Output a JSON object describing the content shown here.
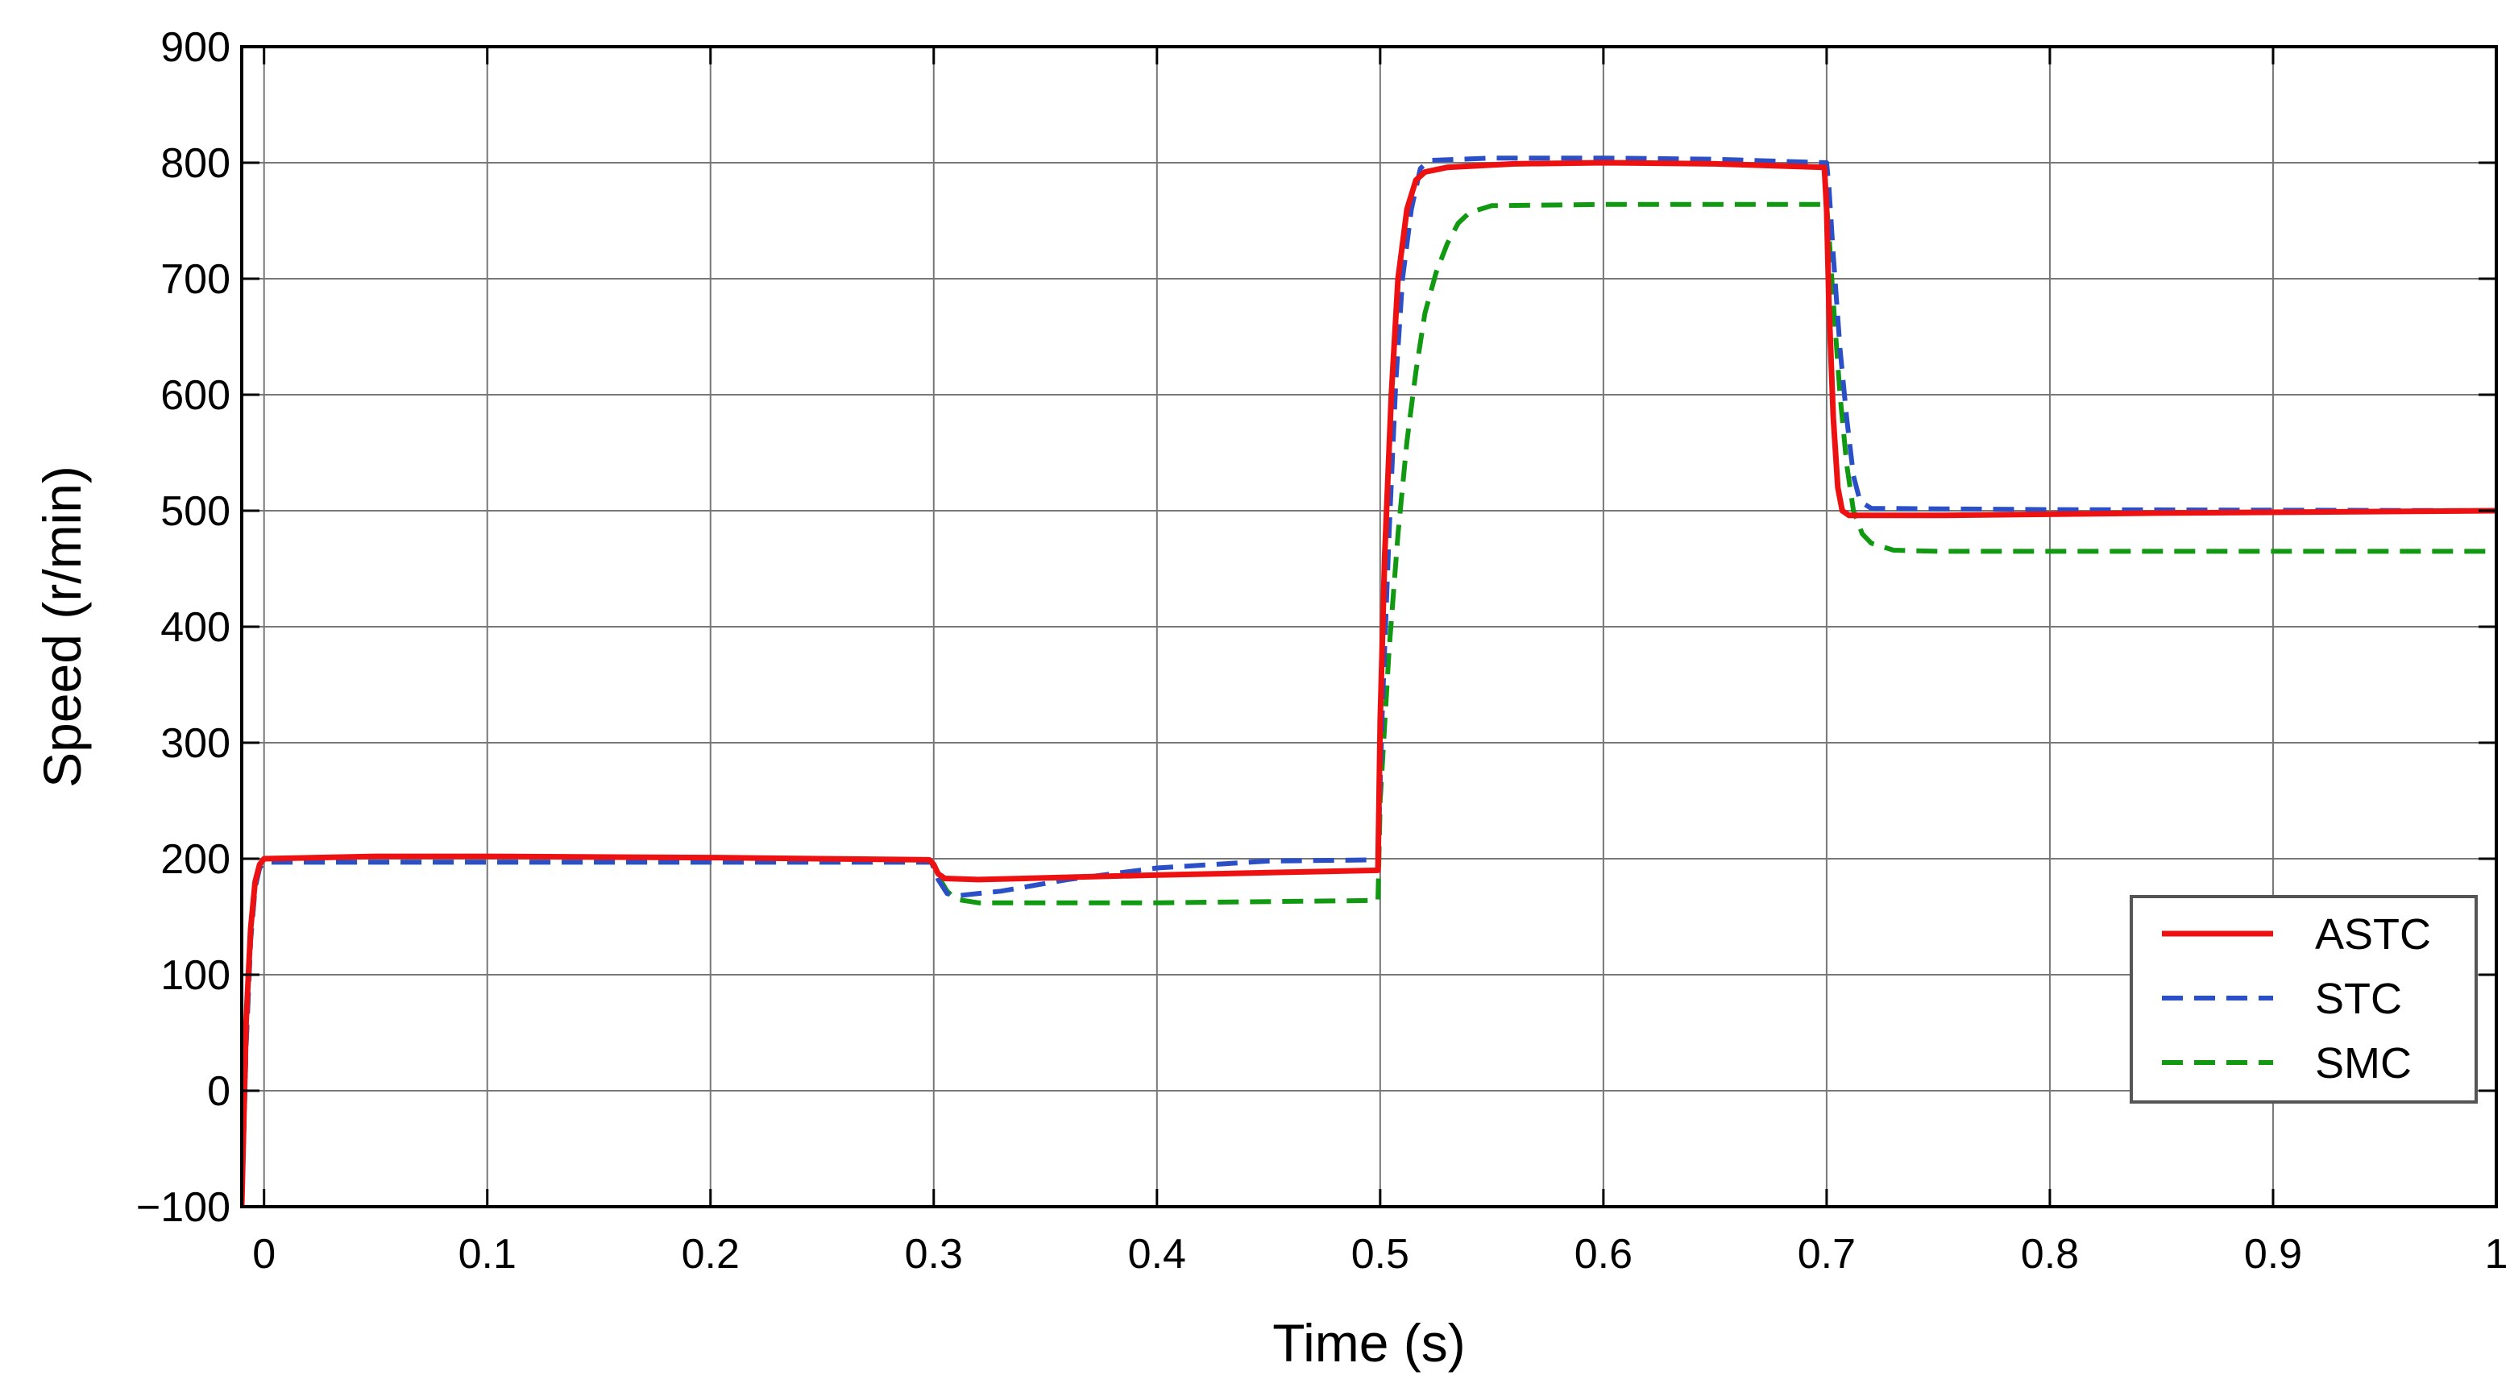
{
  "chart_data": {
    "type": "line",
    "title": "",
    "xlabel": "Time (s)",
    "ylabel": "Speed (r/min)",
    "xlim": [
      -0.01,
      1.0
    ],
    "ylim": [
      -100,
      900
    ],
    "x_ticks": [
      0,
      0.1,
      0.2,
      0.3,
      0.4,
      0.5,
      0.6,
      0.7,
      0.8,
      0.9,
      1
    ],
    "x_tick_labels": [
      "0",
      "0.1",
      "0.2",
      "0.3",
      "0.4",
      "0.5",
      "0.6",
      "0.7",
      "0.8",
      "0.9",
      "1"
    ],
    "y_ticks": [
      -100,
      0,
      100,
      200,
      300,
      400,
      500,
      600,
      700,
      800,
      900
    ],
    "y_tick_labels": [
      "−100",
      "0",
      "100",
      "200",
      "300",
      "400",
      "500",
      "600",
      "700",
      "800",
      "900"
    ],
    "grid": true,
    "legend_position": "bottom-right",
    "series": [
      {
        "name": "ASTC",
        "color": "#ee1111",
        "style": "solid",
        "points": [
          [
            -0.01,
            -100
          ],
          [
            -0.008,
            60
          ],
          [
            -0.006,
            140
          ],
          [
            -0.004,
            180
          ],
          [
            -0.002,
            195
          ],
          [
            0.0,
            200
          ],
          [
            0.05,
            202
          ],
          [
            0.1,
            202
          ],
          [
            0.2,
            201
          ],
          [
            0.298,
            199
          ],
          [
            0.3,
            195
          ],
          [
            0.302,
            187
          ],
          [
            0.305,
            183
          ],
          [
            0.32,
            182
          ],
          [
            0.4,
            186
          ],
          [
            0.45,
            188
          ],
          [
            0.499,
            190
          ],
          [
            0.5,
            320
          ],
          [
            0.502,
            460
          ],
          [
            0.505,
            600
          ],
          [
            0.508,
            700
          ],
          [
            0.512,
            760
          ],
          [
            0.516,
            785
          ],
          [
            0.52,
            792
          ],
          [
            0.53,
            796
          ],
          [
            0.56,
            799
          ],
          [
            0.6,
            800
          ],
          [
            0.65,
            799
          ],
          [
            0.699,
            796
          ],
          [
            0.7,
            760
          ],
          [
            0.701,
            680
          ],
          [
            0.703,
            580
          ],
          [
            0.705,
            520
          ],
          [
            0.707,
            500
          ],
          [
            0.71,
            496
          ],
          [
            0.75,
            496
          ],
          [
            0.85,
            498
          ],
          [
            1.0,
            500
          ]
        ]
      },
      {
        "name": "STC",
        "color": "#2a4fc7",
        "style": "dashed",
        "points": [
          [
            -0.01,
            -100
          ],
          [
            -0.008,
            40
          ],
          [
            -0.006,
            130
          ],
          [
            -0.004,
            175
          ],
          [
            -0.002,
            192
          ],
          [
            0.0,
            197
          ],
          [
            0.1,
            197
          ],
          [
            0.2,
            197
          ],
          [
            0.299,
            197
          ],
          [
            0.302,
            182
          ],
          [
            0.306,
            170
          ],
          [
            0.31,
            168
          ],
          [
            0.33,
            172
          ],
          [
            0.36,
            182
          ],
          [
            0.4,
            192
          ],
          [
            0.45,
            198
          ],
          [
            0.499,
            199
          ],
          [
            0.501,
            330
          ],
          [
            0.504,
            480
          ],
          [
            0.507,
            610
          ],
          [
            0.51,
            700
          ],
          [
            0.514,
            760
          ],
          [
            0.518,
            795
          ],
          [
            0.522,
            802
          ],
          [
            0.55,
            804
          ],
          [
            0.6,
            804
          ],
          [
            0.65,
            803
          ],
          [
            0.7,
            800
          ],
          [
            0.701,
            780
          ],
          [
            0.703,
            720
          ],
          [
            0.706,
            640
          ],
          [
            0.709,
            580
          ],
          [
            0.712,
            530
          ],
          [
            0.715,
            508
          ],
          [
            0.72,
            502
          ],
          [
            0.8,
            501
          ],
          [
            1.0,
            500
          ]
        ]
      },
      {
        "name": "SMC",
        "color": "#119911",
        "style": "dashed",
        "points": [
          [
            -0.01,
            -100
          ],
          [
            -0.008,
            40
          ],
          [
            -0.006,
            130
          ],
          [
            -0.004,
            175
          ],
          [
            -0.002,
            192
          ],
          [
            0.0,
            197
          ],
          [
            0.1,
            197
          ],
          [
            0.2,
            197
          ],
          [
            0.299,
            197
          ],
          [
            0.302,
            185
          ],
          [
            0.306,
            172
          ],
          [
            0.31,
            165
          ],
          [
            0.32,
            162
          ],
          [
            0.4,
            162
          ],
          [
            0.499,
            164
          ],
          [
            0.5,
            250
          ],
          [
            0.504,
            380
          ],
          [
            0.508,
            480
          ],
          [
            0.512,
            560
          ],
          [
            0.516,
            620
          ],
          [
            0.52,
            670
          ],
          [
            0.525,
            705
          ],
          [
            0.53,
            730
          ],
          [
            0.535,
            748
          ],
          [
            0.54,
            757
          ],
          [
            0.55,
            763
          ],
          [
            0.6,
            764
          ],
          [
            0.7,
            764
          ],
          [
            0.701,
            740
          ],
          [
            0.703,
            680
          ],
          [
            0.706,
            600
          ],
          [
            0.709,
            540
          ],
          [
            0.712,
            500
          ],
          [
            0.716,
            480
          ],
          [
            0.72,
            472
          ],
          [
            0.73,
            466
          ],
          [
            0.75,
            465
          ],
          [
            1.0,
            465
          ]
        ]
      }
    ]
  }
}
